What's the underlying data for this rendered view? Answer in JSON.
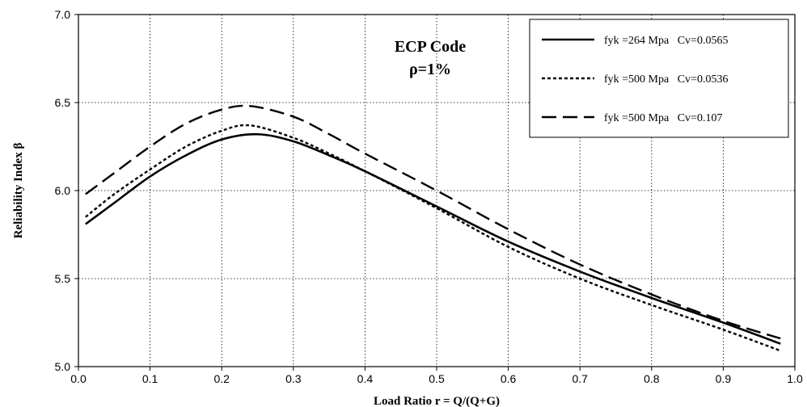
{
  "chart_data": {
    "type": "line",
    "xlabel": "Load Ratio r = Q/(Q+G)",
    "ylabel": "Reliability Index  β",
    "xlim": [
      0.0,
      1.0
    ],
    "ylim": [
      5.0,
      7.0
    ],
    "xticks": [
      0.0,
      0.1,
      0.2,
      0.3,
      0.4,
      0.5,
      0.6,
      0.7,
      0.8,
      0.9,
      1.0
    ],
    "yticks": [
      5.0,
      5.5,
      6.0,
      6.5,
      7.0
    ],
    "xtick_labels": [
      "0.0",
      "0.1",
      "0.2",
      "0.3",
      "0.4",
      "0.5",
      "0.6",
      "0.7",
      "0.8",
      "0.9",
      "1.0"
    ],
    "ytick_labels": [
      "5.0",
      "5.5",
      "6.0",
      "6.5",
      "7.0"
    ],
    "grid": "dotted",
    "legend_position": "top-right",
    "annotation": [
      "ECP Code",
      "ρ=1%"
    ],
    "series": [
      {
        "name": "fyk =264 Mpa   Cv=0.0565",
        "style": "solid",
        "color": "#000000",
        "x": [
          0.01,
          0.05,
          0.1,
          0.15,
          0.2,
          0.25,
          0.3,
          0.35,
          0.4,
          0.5,
          0.6,
          0.7,
          0.8,
          0.9,
          0.98
        ],
        "y": [
          5.81,
          5.93,
          6.08,
          6.2,
          6.29,
          6.32,
          6.28,
          6.2,
          6.11,
          5.91,
          5.71,
          5.54,
          5.39,
          5.25,
          5.13
        ]
      },
      {
        "name": "fyk =500 Mpa   Cv=0.0536",
        "style": "dotted",
        "color": "#000000",
        "x": [
          0.01,
          0.05,
          0.1,
          0.15,
          0.2,
          0.24,
          0.3,
          0.35,
          0.4,
          0.5,
          0.6,
          0.7,
          0.8,
          0.9,
          0.98
        ],
        "y": [
          5.85,
          5.98,
          6.12,
          6.25,
          6.34,
          6.37,
          6.3,
          6.21,
          6.11,
          5.9,
          5.68,
          5.5,
          5.35,
          5.21,
          5.09
        ]
      },
      {
        "name": "fyk =500 Mpa   Cv=0.107",
        "style": "dashed",
        "color": "#000000",
        "x": [
          0.01,
          0.05,
          0.1,
          0.15,
          0.2,
          0.24,
          0.3,
          0.35,
          0.4,
          0.5,
          0.6,
          0.7,
          0.8,
          0.9,
          0.98
        ],
        "y": [
          5.98,
          6.1,
          6.25,
          6.38,
          6.46,
          6.48,
          6.42,
          6.32,
          6.21,
          6.0,
          5.78,
          5.58,
          5.41,
          5.26,
          5.16
        ]
      }
    ]
  }
}
